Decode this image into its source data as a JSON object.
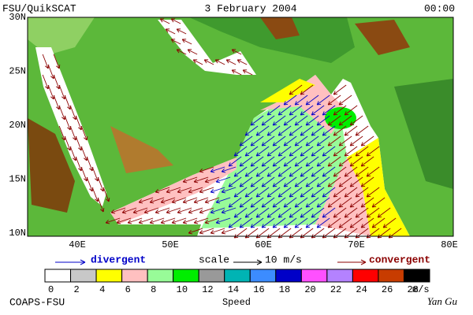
{
  "header": {
    "left": "FSU/QuikSCAT",
    "center": "3 February 2004",
    "right": "00:00"
  },
  "map": {
    "lat_labels": [
      "30N",
      "25N",
      "20N",
      "15N",
      "10N"
    ],
    "lon_labels": [
      "40E",
      "50E",
      "60E",
      "70E",
      "80E"
    ]
  },
  "legend": {
    "divergent": "divergent",
    "scale": "scale",
    "scale_value": "10 m/s",
    "convergent": "convergent"
  },
  "colorbar": {
    "ticks": [
      0,
      2,
      4,
      6,
      8,
      10,
      12,
      14,
      16,
      18,
      20,
      22,
      24,
      26,
      28
    ],
    "colors": [
      "#ffffff",
      "#c8c8c8",
      "#ffff00",
      "#ffc0c0",
      "#98fb98",
      "#00ee00",
      "#999999",
      "#00b4b4",
      "#3c8cff",
      "#0000c8",
      "#ff50ff",
      "#b482ff",
      "#ff0000",
      "#c83c00",
      "#000000"
    ],
    "unit": "m/s",
    "title": "Speed"
  },
  "footer": {
    "left": "COAPS-FSU",
    "right": "Yan Gu"
  }
}
